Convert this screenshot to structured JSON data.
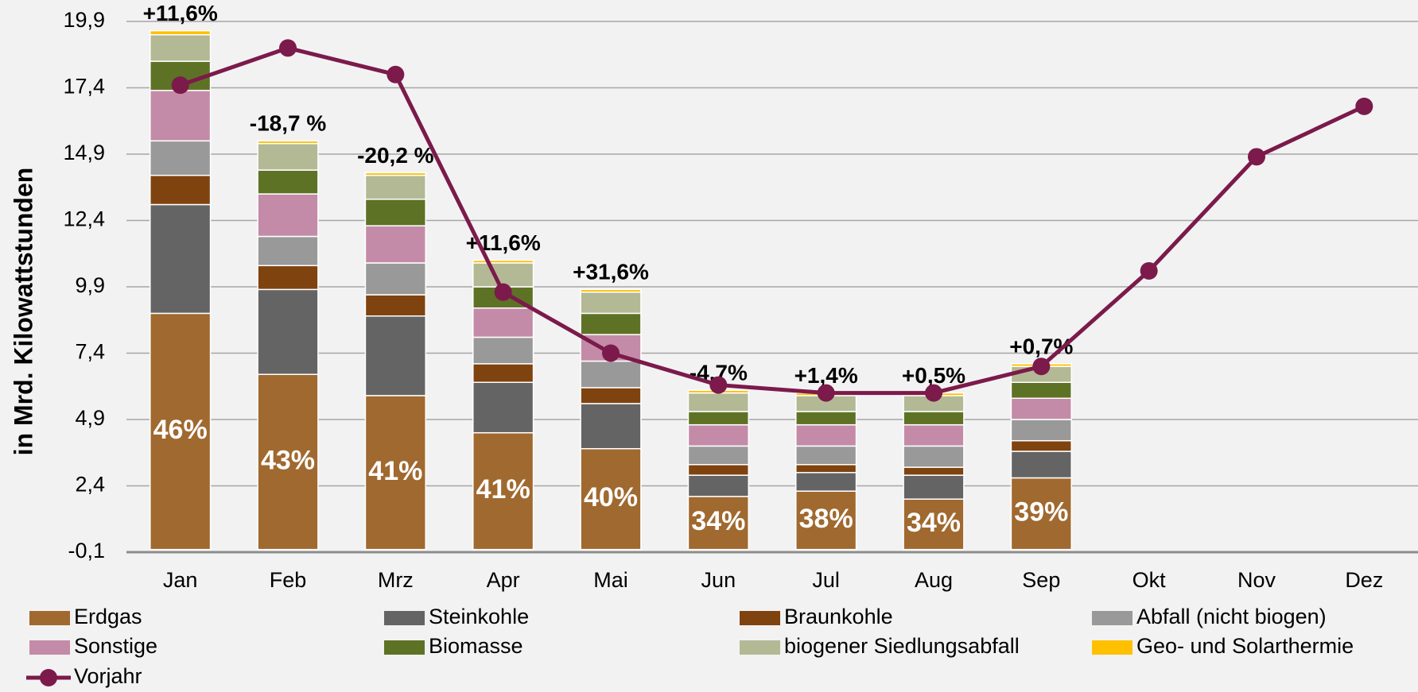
{
  "chart_data": {
    "type": "bar",
    "y_label": "in Mrd. Kilowattstunden",
    "categories": [
      "Jan",
      "Feb",
      "Mrz",
      "Apr",
      "Mai",
      "Jun",
      "Jul",
      "Aug",
      "Sep",
      "Okt",
      "Nov",
      "Dez"
    ],
    "ylim": [
      -0.1,
      19.9
    ],
    "yticks": [
      {
        "value": -0.1,
        "label": "-0,1"
      },
      {
        "value": 2.4,
        "label": "2,4"
      },
      {
        "value": 4.9,
        "label": "4,9"
      },
      {
        "value": 7.4,
        "label": "7,4"
      },
      {
        "value": 9.9,
        "label": "9,9"
      },
      {
        "value": 12.4,
        "label": "12,4"
      },
      {
        "value": 14.9,
        "label": "14,9"
      },
      {
        "value": 17.4,
        "label": "17,4"
      },
      {
        "value": 19.9,
        "label": "19,9"
      }
    ],
    "grid": true,
    "stacked": true,
    "series": [
      {
        "name": "Erdgas",
        "color": "#a0692f",
        "values": [
          8.9,
          6.6,
          5.8,
          4.4,
          3.8,
          2.0,
          2.2,
          1.9,
          2.7,
          null,
          null,
          null
        ]
      },
      {
        "name": "Steinkohle",
        "color": "#646464",
        "values": [
          4.1,
          3.2,
          3.0,
          1.9,
          1.7,
          0.8,
          0.7,
          0.9,
          1.0,
          null,
          null,
          null
        ]
      },
      {
        "name": "Braunkohle",
        "color": "#7f4310",
        "values": [
          1.1,
          0.9,
          0.8,
          0.7,
          0.6,
          0.4,
          0.3,
          0.3,
          0.4,
          null,
          null,
          null
        ]
      },
      {
        "name": "Abfall (nicht biogen)",
        "color": "#999999",
        "values": [
          1.3,
          1.1,
          1.2,
          1.0,
          1.0,
          0.7,
          0.7,
          0.8,
          0.8,
          null,
          null,
          null
        ]
      },
      {
        "name": "Sonstige",
        "color": "#c48ba8",
        "values": [
          1.9,
          1.6,
          1.4,
          1.1,
          1.0,
          0.8,
          0.8,
          0.8,
          0.8,
          null,
          null,
          null
        ]
      },
      {
        "name": "Biomasse",
        "color": "#5e7226",
        "values": [
          1.1,
          0.9,
          1.0,
          0.8,
          0.8,
          0.5,
          0.5,
          0.5,
          0.6,
          null,
          null,
          null
        ]
      },
      {
        "name": "biogener Siedlungsabfall",
        "color": "#b3b995",
        "values": [
          1.0,
          1.0,
          0.9,
          0.9,
          0.8,
          0.7,
          0.6,
          0.6,
          0.6,
          null,
          null,
          null
        ]
      },
      {
        "name": "Geo- und Solarthermie",
        "color": "#ffc000",
        "values": [
          0.15,
          0.1,
          0.1,
          0.1,
          0.1,
          0.1,
          0.1,
          0.1,
          0.1,
          null,
          null,
          null
        ]
      },
      {
        "name": "Vorjahr",
        "color": "#7b1a4b",
        "kind": "line",
        "values": [
          17.5,
          18.9,
          17.9,
          9.7,
          7.4,
          6.2,
          5.9,
          5.9,
          6.9,
          10.5,
          14.8,
          16.7
        ]
      }
    ],
    "share_labels": [
      "46%",
      "43%",
      "41%",
      "41%",
      "40%",
      "34%",
      "38%",
      "34%",
      "39%"
    ],
    "change_labels": [
      "+11,6%",
      "-18,7 %",
      "-20,2 %",
      "+11,6%",
      "+31,6%",
      "-4,7%",
      "+1,4%",
      "+0,5%",
      "+0,7%"
    ]
  }
}
